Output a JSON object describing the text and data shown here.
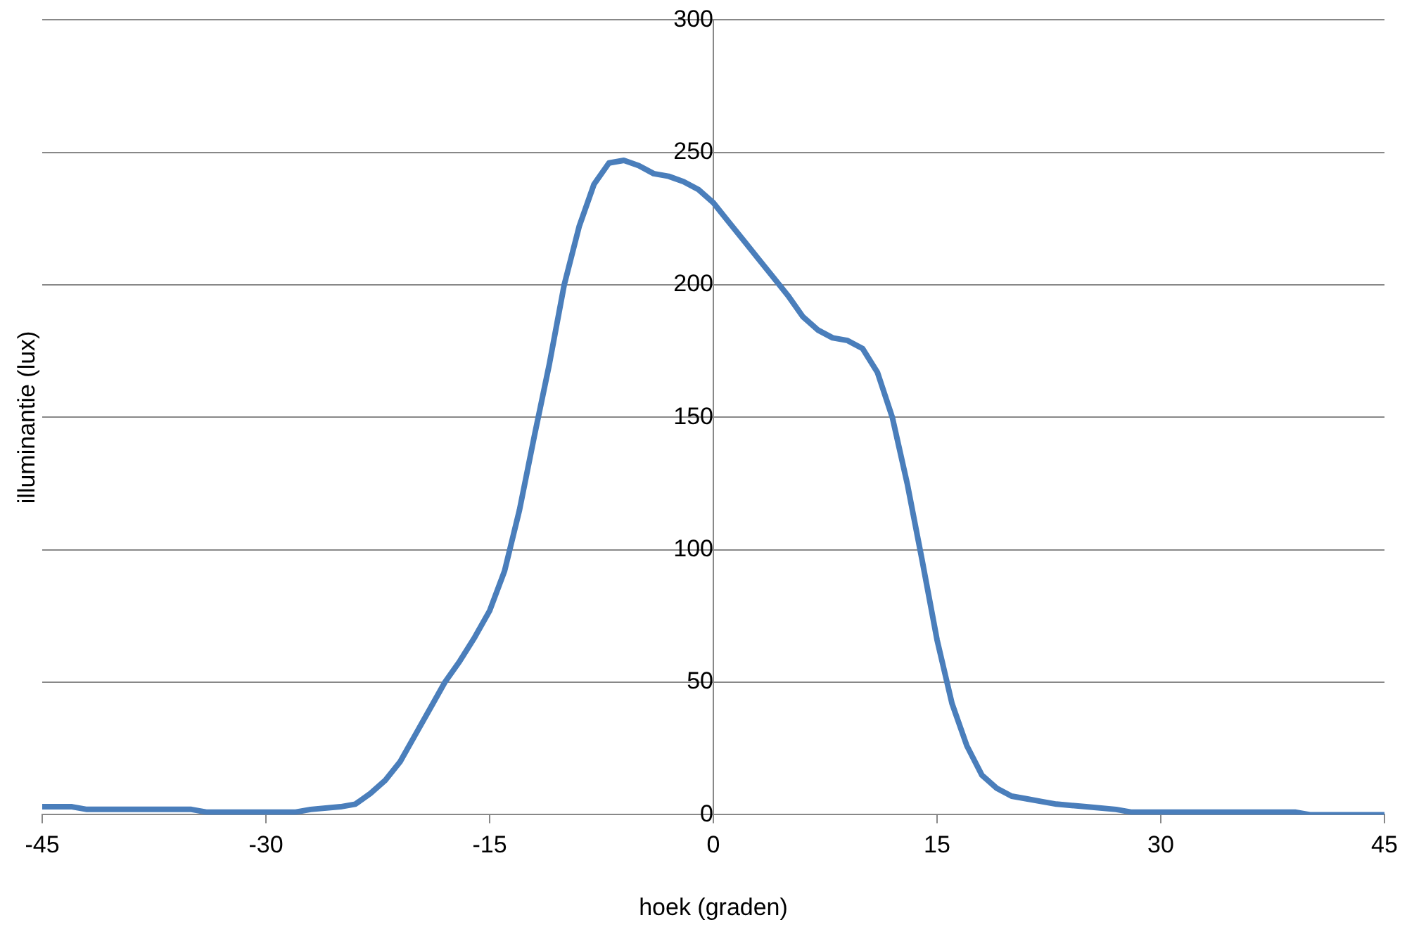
{
  "chart_data": {
    "type": "line",
    "xlabel": "hoek (graden)",
    "ylabel": "illuminantie (lux)",
    "xlim": [
      -45,
      45
    ],
    "xticks": [
      -45,
      -30,
      -15,
      0,
      15,
      30,
      45
    ],
    "ylim": [
      0,
      300
    ],
    "yticks": [
      0,
      50,
      100,
      150,
      200,
      250,
      300
    ],
    "grid": "y",
    "legend": false,
    "marker": "none",
    "line_style": "solid",
    "series": [
      {
        "color": "#4a7ebb",
        "x": [
          -45,
          -43,
          -42,
          -35,
          -34,
          -28,
          -27,
          -25,
          -24,
          -23,
          -22,
          -21,
          -20,
          -19,
          -18,
          -17,
          -16,
          -15,
          -14,
          -13,
          -12,
          -11,
          -10,
          -9,
          -8,
          -7,
          -6,
          -5,
          -4,
          -3,
          -2,
          -1,
          0,
          1,
          2,
          3,
          4,
          5,
          6,
          7,
          8,
          9,
          10,
          11,
          12,
          13,
          14,
          15,
          16,
          17,
          18,
          19,
          20,
          21,
          22,
          23,
          25,
          27,
          28,
          30,
          39,
          40,
          45
        ],
        "values": [
          3,
          3,
          2,
          2,
          1,
          1,
          2,
          3,
          4,
          8,
          13,
          20,
          30,
          40,
          50,
          58,
          67,
          77,
          92,
          115,
          143,
          170,
          200,
          222,
          238,
          246,
          247,
          245,
          242,
          241,
          239,
          236,
          231,
          224,
          217,
          210,
          203,
          196,
          188,
          183,
          180,
          179,
          176,
          167,
          150,
          125,
          96,
          66,
          42,
          26,
          15,
          10,
          7,
          6,
          5,
          4,
          3,
          2,
          1,
          1,
          1,
          0,
          0
        ]
      }
    ]
  }
}
